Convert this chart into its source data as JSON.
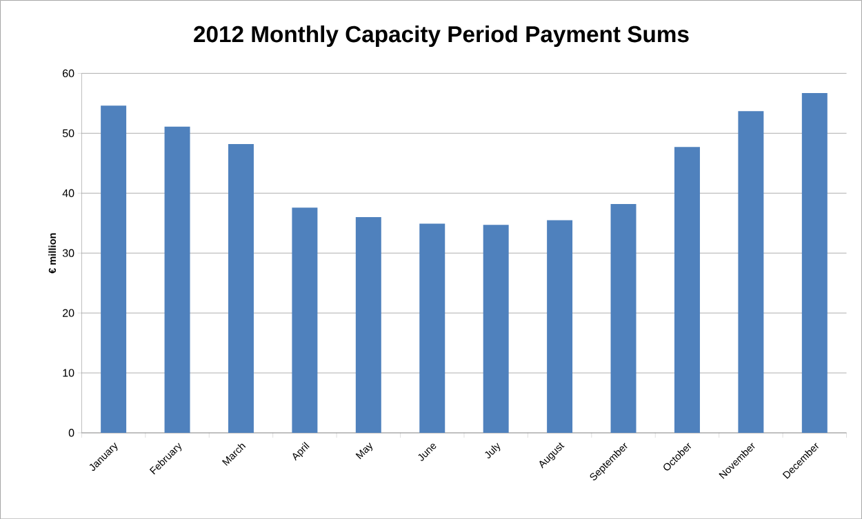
{
  "chart_data": {
    "type": "bar",
    "title": "2012 Monthly Capacity Period Payment Sums",
    "ylabel": "€ million",
    "categories": [
      "January",
      "February",
      "March",
      "April",
      "May",
      "June",
      "July",
      "August",
      "September",
      "October",
      "November",
      "December"
    ],
    "values": [
      54.6,
      51.1,
      48.2,
      37.6,
      36.0,
      34.9,
      34.7,
      35.5,
      38.2,
      47.7,
      53.7,
      56.7
    ],
    "color": "#4f81bd",
    "ylim": [
      0,
      60
    ],
    "yticks": [
      0,
      10,
      20,
      30,
      40,
      50,
      60
    ],
    "grid": "y"
  }
}
